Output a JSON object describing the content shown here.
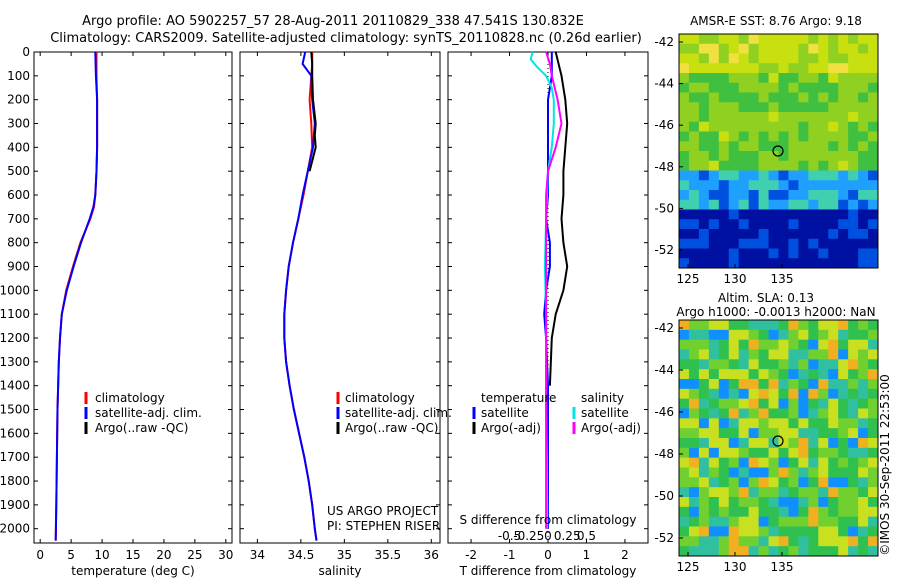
{
  "header": {
    "line1": "Argo profile: AO 5902257_57 28-Aug-2011 20110829_338 47.541S 130.832E",
    "line2": "Climatology: CARS2009. Satellite-adjusted climatology: synTS_20110828.nc (0.26d earlier)"
  },
  "colors": {
    "climatology": "#ff0000",
    "satellite": "#0000ff",
    "argo": "#000000",
    "salinity_satellite": "#00e5e5",
    "salinity_argo": "#ff00ff"
  },
  "side": {
    "sst_title": "AMSR-E SST: 8.76 Argo: 9.18",
    "sla_title1": "Altim. SLA: 0.13",
    "sla_title2": "Argo h1000: -0.0013 h2000: NaN",
    "credit": "©IMOS 30-Sep-2011 22:53:00",
    "map_yticks": [
      "-42",
      "-44",
      "-46",
      "-48",
      "-50",
      "-52"
    ],
    "map_xticks": [
      "125",
      "130",
      "135"
    ]
  },
  "chart_data": [
    {
      "type": "line",
      "id": "temperature",
      "xlabel": "temperature (deg C)",
      "xlim": [
        -1,
        31
      ],
      "ylim": [
        2060,
        0
      ],
      "yticks": [
        0,
        100,
        200,
        300,
        400,
        500,
        600,
        700,
        800,
        900,
        1000,
        1100,
        1200,
        1300,
        1400,
        1500,
        1600,
        1700,
        1800,
        1900,
        2000
      ],
      "xticks": [
        0,
        5,
        10,
        15,
        20,
        25,
        30
      ],
      "legend": [
        "climatology",
        "satellite-adj. clim.",
        "Argo(..raw -QC)"
      ],
      "legend_position": "bottom-right",
      "series": [
        {
          "name": "climatology",
          "depth": [
            0,
            100,
            200,
            300,
            400,
            500,
            600,
            650,
            700,
            800,
            900,
            1000,
            1100,
            1200,
            1300,
            1500,
            1700,
            1900,
            2050
          ],
          "values": [
            9.1,
            9.1,
            9.2,
            9.2,
            9.2,
            9.1,
            8.9,
            8.7,
            8.1,
            6.5,
            5.3,
            4.2,
            3.5,
            3.2,
            3.0,
            2.8,
            2.7,
            2.6,
            2.5
          ]
        },
        {
          "name": "satellite-adj. clim.",
          "depth": [
            0,
            100,
            200,
            300,
            400,
            500,
            600,
            650,
            700,
            800,
            900,
            1000,
            1100,
            1200,
            1300,
            1500,
            1700,
            1900,
            2050
          ],
          "values": [
            8.9,
            9.0,
            9.2,
            9.2,
            9.2,
            9.1,
            8.9,
            8.6,
            8.0,
            6.6,
            5.4,
            4.3,
            3.5,
            3.2,
            3.0,
            2.8,
            2.7,
            2.6,
            2.5
          ]
        }
      ]
    },
    {
      "type": "line",
      "id": "salinity",
      "xlabel": "salinity",
      "xlim": [
        33.8,
        36.1
      ],
      "ylim": [
        2060,
        0
      ],
      "xticks": [
        34,
        34.5,
        35,
        35.5,
        36
      ],
      "legend": [
        "climatology",
        "satellite-adj. clim.",
        "Argo(..raw -QC)"
      ],
      "legend_position": "bottom-right",
      "annotation": [
        "US ARGO PROJECT",
        "PI: STEPHEN RISER"
      ],
      "series": [
        {
          "name": "climatology",
          "depth": [
            0,
            50,
            100,
            200,
            300,
            400,
            500,
            600,
            700,
            800,
            900,
            1000,
            1100,
            1200,
            1300,
            1400,
            1500,
            1600,
            1700,
            1800,
            1900,
            2000,
            2050
          ],
          "values": [
            34.63,
            34.63,
            34.62,
            34.6,
            34.62,
            34.63,
            34.58,
            34.53,
            34.47,
            34.41,
            34.36,
            34.33,
            34.31,
            34.31,
            34.33,
            34.37,
            34.42,
            34.48,
            34.54,
            34.59,
            34.63,
            34.66,
            34.68
          ]
        },
        {
          "name": "satellite-adj. clim.",
          "depth": [
            0,
            50,
            100,
            200,
            300,
            400,
            500,
            600,
            700,
            800,
            900,
            1000,
            1100,
            1200,
            1300,
            1400,
            1500,
            1600,
            1700,
            1800,
            1900,
            2000,
            2050
          ],
          "values": [
            34.55,
            34.52,
            34.62,
            34.63,
            34.66,
            34.64,
            34.58,
            34.52,
            34.47,
            34.41,
            34.36,
            34.33,
            34.31,
            34.31,
            34.33,
            34.37,
            34.42,
            34.48,
            34.54,
            34.59,
            34.63,
            34.66,
            34.68
          ]
        },
        {
          "name": "Argo(..raw -QC)",
          "depth": [
            0,
            50,
            100,
            200,
            300,
            350,
            400,
            500
          ],
          "values": [
            34.62,
            34.63,
            34.63,
            34.64,
            34.67,
            34.66,
            34.67,
            34.6
          ]
        }
      ]
    },
    {
      "type": "line",
      "id": "difference",
      "xlabel": "T difference from climatology",
      "xlabel_top": "S difference from climatology",
      "xlim": [
        -2.6,
        2.6
      ],
      "ylim": [
        2060,
        0
      ],
      "xticks": [
        -2,
        -1,
        0,
        1,
        2
      ],
      "xticklabels": [
        "-2",
        "-1",
        "0",
        "1",
        "2"
      ],
      "sticks": [
        "-0.5",
        "-0.25",
        "0",
        "0.25",
        "0.5"
      ],
      "legend_t": {
        "title": "temperature",
        "items": [
          "satellite",
          "Argo(-adj)"
        ]
      },
      "legend_s": {
        "title": "salinity",
        "items": [
          "satellite",
          "Argo(-adj)"
        ]
      },
      "series": [
        {
          "name": "T satellite",
          "depth": [
            0,
            100,
            200,
            300,
            400,
            500,
            600,
            700,
            800,
            900,
            1000,
            1100,
            1200,
            1400,
            1600,
            1800,
            2000
          ],
          "values": [
            0.1,
            0.1,
            0.0,
            0.0,
            0.0,
            0.0,
            0.0,
            -0.05,
            0.05,
            0.05,
            -0.05,
            -0.1,
            -0.05,
            0.0,
            0.0,
            0.0,
            0.0
          ]
        },
        {
          "name": "T Argo(-adj)",
          "depth": [
            0,
            100,
            200,
            300,
            400,
            500,
            600,
            700,
            800,
            900,
            1000,
            1100,
            1200,
            1400
          ],
          "values": [
            0.2,
            0.35,
            0.45,
            0.5,
            0.45,
            0.4,
            0.4,
            0.35,
            0.4,
            0.5,
            0.4,
            0.2,
            0.1,
            0.05
          ]
        },
        {
          "name": "S satellite",
          "depth": [
            0,
            30,
            60,
            100,
            150,
            200,
            300,
            400,
            500,
            700,
            900,
            1100,
            1300,
            1500,
            1700,
            1900,
            2000
          ],
          "values": [
            -0.4,
            -0.45,
            -0.3,
            -0.05,
            0.1,
            0.15,
            0.15,
            0.1,
            0.0,
            -0.05,
            -0.08,
            -0.05,
            -0.05,
            -0.05,
            -0.03,
            -0.02,
            -0.02
          ]
        },
        {
          "name": "S Argo(-adj)",
          "depth": [
            0,
            50,
            100,
            200,
            300,
            400,
            500,
            600,
            700,
            800,
            900,
            1000,
            1200,
            1500,
            1700,
            2000
          ],
          "values": [
            -0.05,
            0.05,
            0.1,
            0.25,
            0.35,
            0.2,
            0.0,
            -0.05,
            -0.05,
            -0.05,
            -0.05,
            -0.05,
            -0.05,
            -0.05,
            -0.05,
            -0.05
          ]
        }
      ]
    }
  ]
}
